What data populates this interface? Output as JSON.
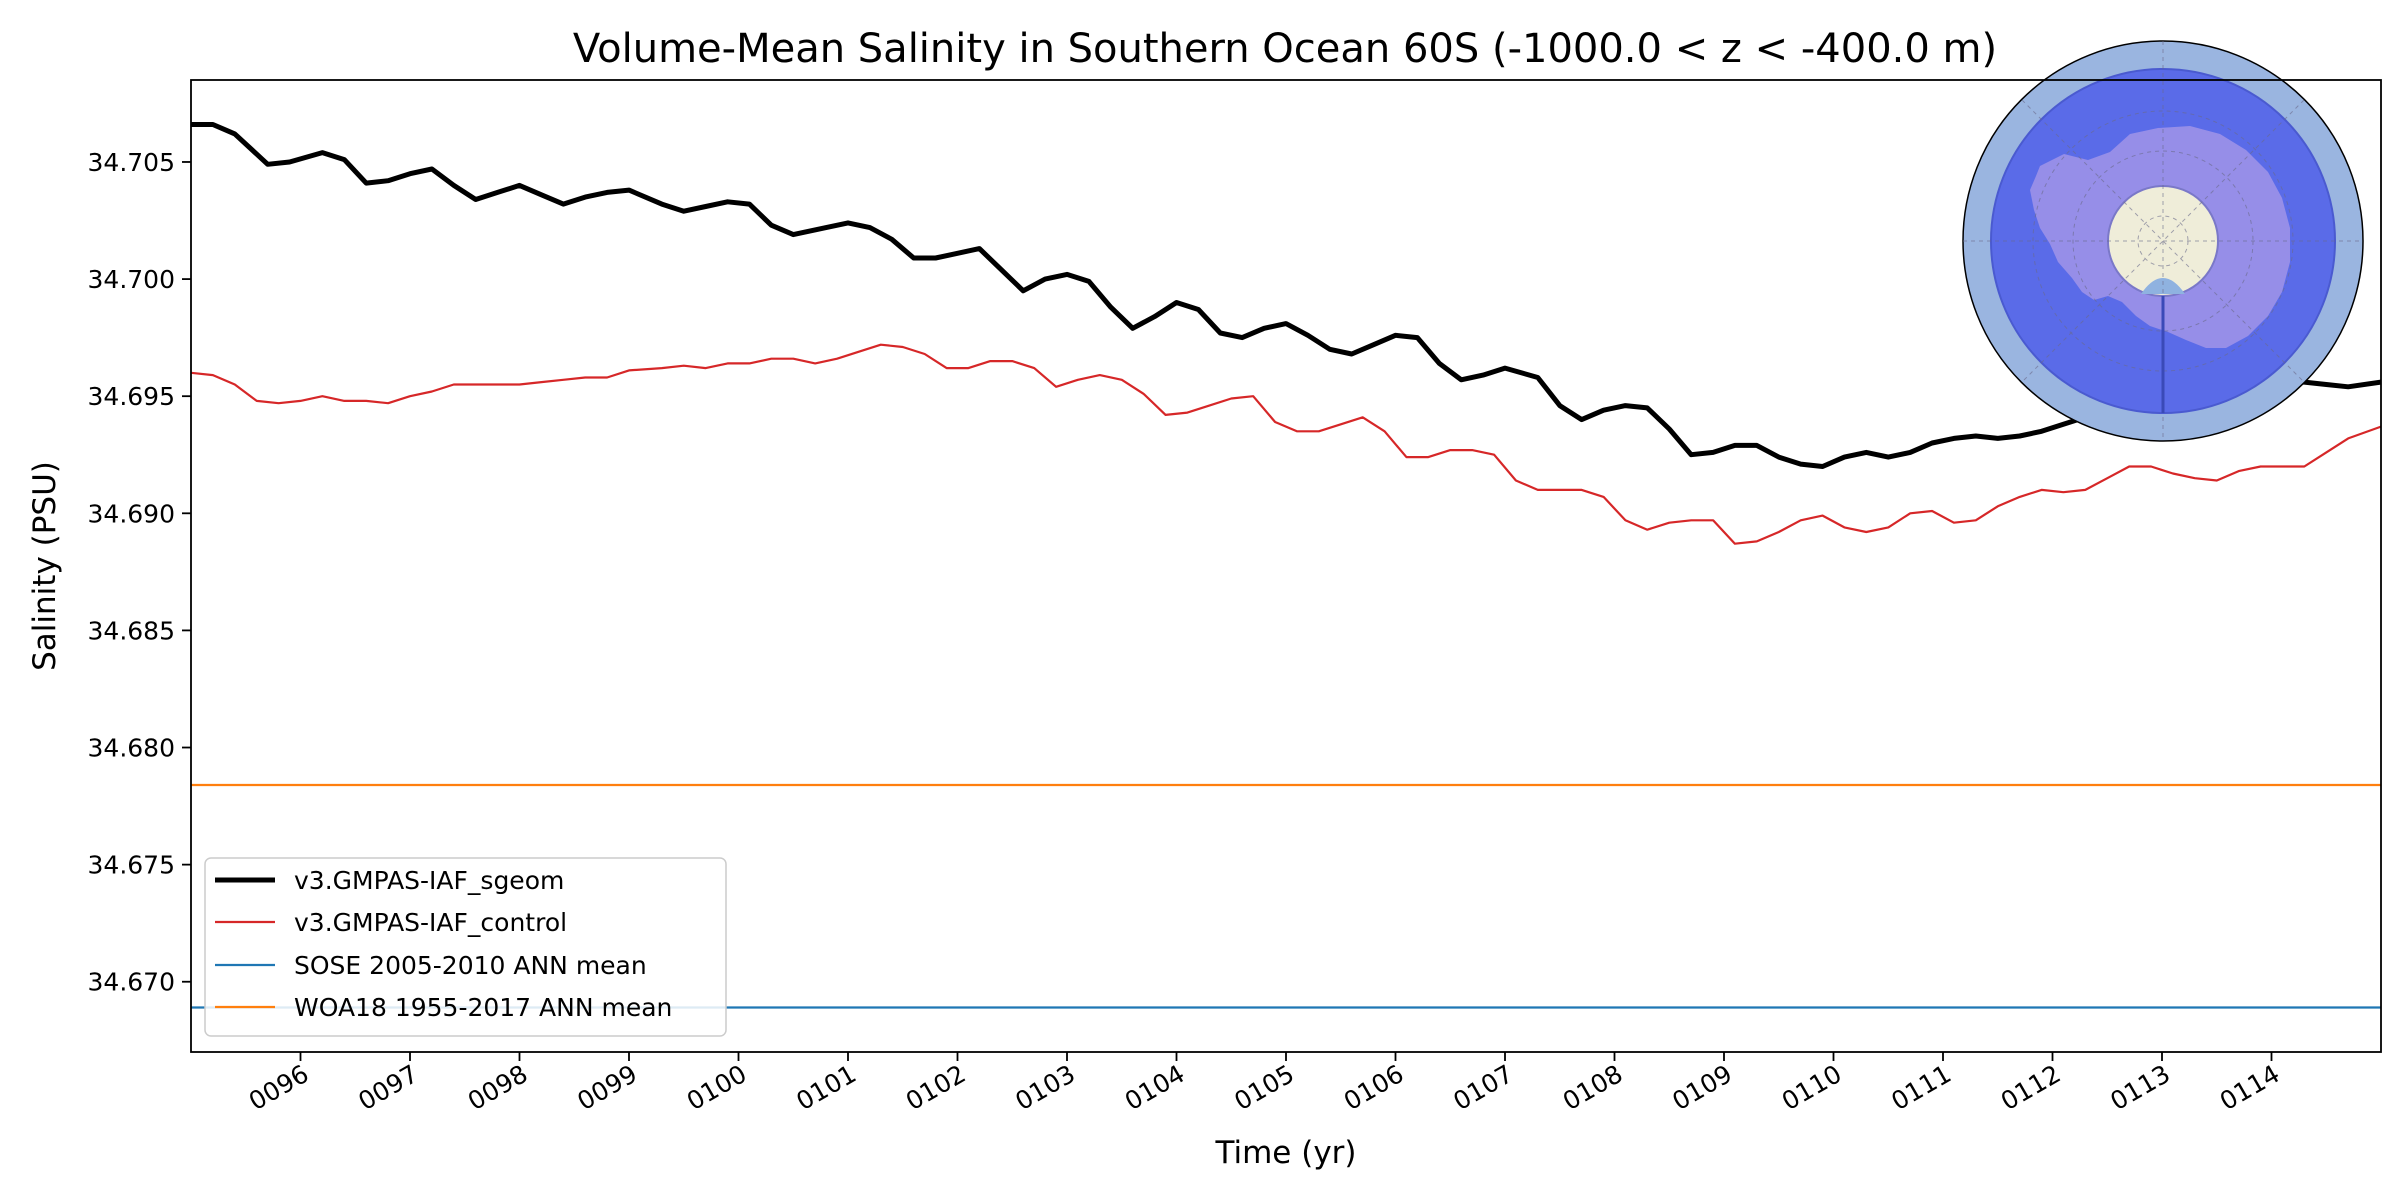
{
  "chart_data": {
    "type": "line",
    "title": "Volume-Mean Salinity in Southern Ocean 60S (-1000.0 < z < -400.0 m)",
    "xlabel": "Time (yr)",
    "ylabel": "Salinity (PSU)",
    "xlim": [
      95.0,
      115.0
    ],
    "ylim": [
      34.667,
      34.7085
    ],
    "x_ticks": [
      96,
      97,
      98,
      99,
      100,
      101,
      102,
      103,
      104,
      105,
      106,
      107,
      108,
      109,
      110,
      111,
      112,
      113,
      114
    ],
    "x_tick_labels": [
      "0096",
      "0097",
      "0098",
      "0099",
      "0100",
      "0101",
      "0102",
      "0103",
      "0104",
      "0105",
      "0106",
      "0107",
      "0108",
      "0109",
      "0110",
      "0111",
      "0112",
      "0113",
      "0114"
    ],
    "y_ticks": [
      34.67,
      34.675,
      34.68,
      34.685,
      34.69,
      34.695,
      34.7,
      34.705
    ],
    "y_tick_labels": [
      "34.670",
      "34.675",
      "34.680",
      "34.685",
      "34.690",
      "34.695",
      "34.700",
      "34.705"
    ],
    "grid": false,
    "legend_position": "lower-left",
    "series": [
      {
        "name": "v3.GMPAS-IAF_sgeom",
        "color": "#000000",
        "style": "solid-thick",
        "x": [
          95.0,
          95.2,
          95.4,
          95.7,
          95.9,
          96.2,
          96.4,
          96.6,
          96.8,
          97.0,
          97.2,
          97.4,
          97.6,
          97.8,
          98.0,
          98.2,
          98.4,
          98.6,
          98.8,
          99.0,
          99.3,
          99.5,
          99.7,
          99.9,
          100.1,
          100.3,
          100.5,
          100.8,
          101.0,
          101.2,
          101.4,
          101.6,
          101.8,
          102.0,
          102.2,
          102.4,
          102.6,
          102.8,
          103.0,
          103.2,
          103.4,
          103.6,
          103.8,
          104.0,
          104.2,
          104.4,
          104.6,
          104.8,
          105.0,
          105.2,
          105.4,
          105.6,
          105.8,
          106.0,
          106.2,
          106.4,
          106.6,
          106.8,
          107.0,
          107.3,
          107.5,
          107.7,
          107.9,
          108.1,
          108.3,
          108.5,
          108.7,
          108.9,
          109.1,
          109.3,
          109.5,
          109.7,
          109.9,
          110.1,
          110.3,
          110.5,
          110.7,
          110.9,
          111.1,
          111.3,
          111.5,
          111.7,
          111.9,
          112.1,
          112.3,
          112.5,
          112.7,
          112.9,
          113.1,
          113.3,
          113.5,
          113.7,
          113.9,
          114.1,
          114.3,
          114.5,
          114.7,
          115.0
        ],
        "values": [
          34.7066,
          34.7066,
          34.7062,
          34.7049,
          34.705,
          34.7054,
          34.7051,
          34.7041,
          34.7042,
          34.7045,
          34.7047,
          34.704,
          34.7034,
          34.7037,
          34.704,
          34.7036,
          34.7032,
          34.7035,
          34.7037,
          34.7038,
          34.7032,
          34.7029,
          34.7031,
          34.7033,
          34.7032,
          34.7023,
          34.7019,
          34.7022,
          34.7024,
          34.7022,
          34.7017,
          34.7009,
          34.7009,
          34.7011,
          34.7013,
          34.7004,
          34.6995,
          34.7,
          34.7002,
          34.6999,
          34.6988,
          34.6979,
          34.6984,
          34.699,
          34.6987,
          34.6977,
          34.6975,
          34.6979,
          34.6981,
          34.6976,
          34.697,
          34.6968,
          34.6972,
          34.6976,
          34.6975,
          34.6964,
          34.6957,
          34.6959,
          34.6962,
          34.6958,
          34.6946,
          34.694,
          34.6944,
          34.6946,
          34.6945,
          34.6936,
          34.6925,
          34.6926,
          34.6929,
          34.6929,
          34.6924,
          34.6921,
          34.692,
          34.6924,
          34.6926,
          34.6924,
          34.6926,
          34.693,
          34.6932,
          34.6933,
          34.6932,
          34.6933,
          34.6935,
          34.6938,
          34.6941,
          34.6944,
          34.6946,
          34.6948,
          34.695,
          34.6952,
          34.6954,
          34.6954,
          34.6955,
          34.6956,
          34.6956,
          34.6955,
          34.6954,
          34.6956
        ]
      },
      {
        "name": "v3.GMPAS-IAF_control",
        "color": "#d62728",
        "style": "solid",
        "x": [
          95.0,
          95.2,
          95.4,
          95.6,
          95.8,
          96.0,
          96.2,
          96.4,
          96.6,
          96.8,
          97.0,
          97.2,
          97.4,
          97.6,
          97.8,
          98.0,
          98.2,
          98.4,
          98.6,
          98.8,
          99.0,
          99.3,
          99.5,
          99.7,
          99.9,
          100.1,
          100.3,
          100.5,
          100.7,
          100.9,
          101.1,
          101.3,
          101.5,
          101.7,
          101.9,
          102.1,
          102.3,
          102.5,
          102.7,
          102.9,
          103.1,
          103.3,
          103.5,
          103.7,
          103.9,
          104.1,
          104.3,
          104.5,
          104.7,
          104.9,
          105.1,
          105.3,
          105.5,
          105.7,
          105.9,
          106.1,
          106.3,
          106.5,
          106.7,
          106.9,
          107.1,
          107.3,
          107.5,
          107.7,
          107.9,
          108.1,
          108.3,
          108.5,
          108.7,
          108.9,
          109.1,
          109.3,
          109.5,
          109.7,
          109.9,
          110.1,
          110.3,
          110.5,
          110.7,
          110.9,
          111.1,
          111.3,
          111.5,
          111.7,
          111.9,
          112.1,
          112.3,
          112.5,
          112.7,
          112.9,
          113.1,
          113.3,
          113.5,
          113.7,
          113.9,
          114.1,
          114.3,
          114.5,
          114.7,
          115.0
        ],
        "values": [
          34.696,
          34.6959,
          34.6955,
          34.6948,
          34.6947,
          34.6948,
          34.695,
          34.6948,
          34.6948,
          34.6947,
          34.695,
          34.6952,
          34.6955,
          34.6955,
          34.6955,
          34.6955,
          34.6956,
          34.6957,
          34.6958,
          34.6958,
          34.6961,
          34.6962,
          34.6963,
          34.6962,
          34.6964,
          34.6964,
          34.6966,
          34.6966,
          34.6964,
          34.6966,
          34.6969,
          34.6972,
          34.6971,
          34.6968,
          34.6962,
          34.6962,
          34.6965,
          34.6965,
          34.6962,
          34.6954,
          34.6957,
          34.6959,
          34.6957,
          34.6951,
          34.6942,
          34.6943,
          34.6946,
          34.6949,
          34.695,
          34.6939,
          34.6935,
          34.6935,
          34.6938,
          34.6941,
          34.6935,
          34.6924,
          34.6924,
          34.6927,
          34.6927,
          34.6925,
          34.6914,
          34.691,
          34.691,
          34.691,
          34.6907,
          34.6897,
          34.6893,
          34.6896,
          34.6897,
          34.6897,
          34.6887,
          34.6888,
          34.6892,
          34.6897,
          34.6899,
          34.6894,
          34.6892,
          34.6894,
          34.69,
          34.6901,
          34.6896,
          34.6897,
          34.6903,
          34.6907,
          34.691,
          34.6909,
          34.691,
          34.6915,
          34.692,
          34.692,
          34.6917,
          34.6915,
          34.6914,
          34.6918,
          34.692,
          34.692,
          34.692,
          34.6926,
          34.6932,
          34.6937
        ]
      },
      {
        "name": "SOSE 2005-2010 ANN mean",
        "color": "#1f77b4",
        "style": "solid",
        "x": [
          95.0,
          115.0
        ],
        "values": [
          34.6689,
          34.6689
        ]
      },
      {
        "name": "WOA18 1955-2017 ANN mean",
        "color": "#ff7f0e",
        "style": "solid",
        "x": [
          95.0,
          115.0
        ],
        "values": [
          34.6784,
          34.6784
        ]
      }
    ],
    "inset_map": {
      "description_icon": "antarctica-polar-map-icon",
      "ring_color": "#9ab5e0",
      "region_color": "#5a6be8",
      "land_color": "#9a90e8",
      "pole_color": "#efedd9"
    }
  }
}
